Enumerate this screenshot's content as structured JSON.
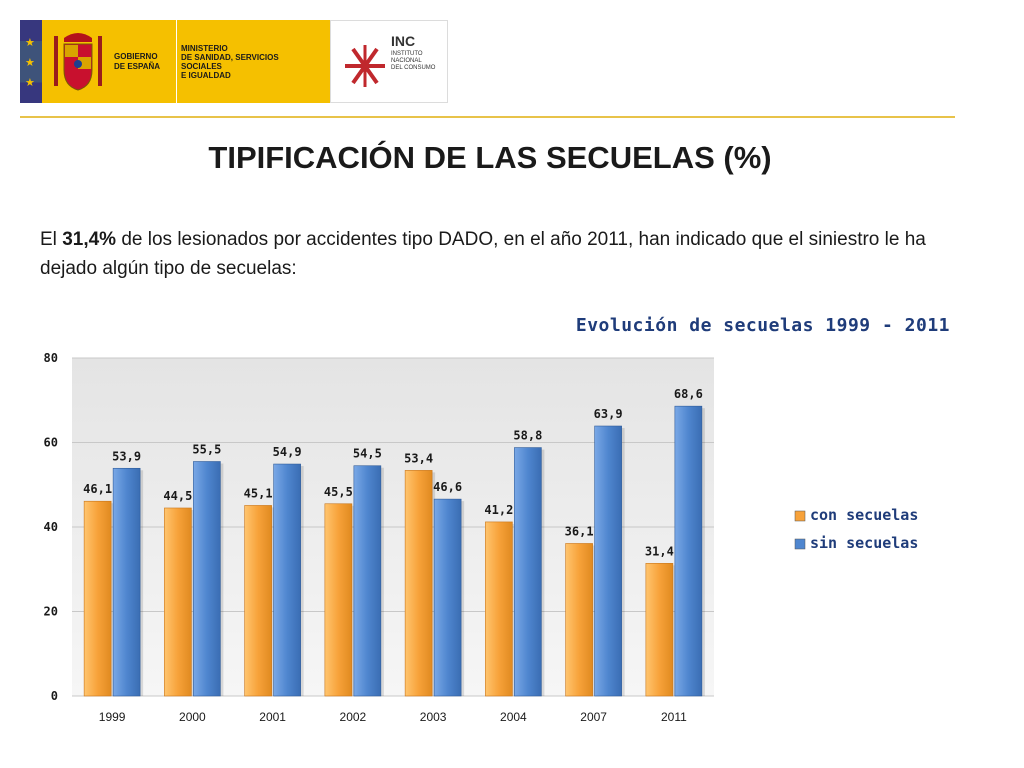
{
  "header": {
    "gobierno": [
      "GOBIERNO",
      "DE ESPAÑA"
    ],
    "ministerio": [
      "MINISTERIO",
      "DE SANIDAD, SERVICIOS SOCIALES",
      "E IGUALDAD"
    ],
    "inc_title": "INC",
    "inc_subtitle": [
      "INSTITUTO",
      "NACIONAL",
      "DEL CONSUMO"
    ],
    "brand_yellow": "#f5c000",
    "brand_red": "#c60b1e"
  },
  "title": "TIPIFICACIÓN DE LAS SECUELAS (%)",
  "intro": {
    "prefix": "El ",
    "highlight": "31,4%",
    "suffix": " de los lesionados por accidentes tipo DADO, en el año 2011, han indicado que el siniestro le ha dejado algún tipo de secuelas:"
  },
  "chart_data": {
    "type": "bar",
    "title": "Evolución de secuelas 1999 - 2011",
    "categories": [
      "1999",
      "2000",
      "2001",
      "2002",
      "2003",
      "2004",
      "2007",
      "2011"
    ],
    "series": [
      {
        "name": "con secuelas",
        "color": "#f7a23a",
        "values": [
          46.1,
          44.5,
          45.1,
          45.5,
          53.4,
          41.2,
          36.1,
          31.4
        ],
        "labels": [
          "46,1",
          "44,5",
          "45,1",
          "45,5",
          "53,4",
          "41,2",
          "36,1",
          "31,4"
        ]
      },
      {
        "name": "sin secuelas",
        "color": "#4f86cf",
        "values": [
          53.9,
          55.5,
          54.9,
          54.5,
          46.6,
          58.8,
          63.9,
          68.6
        ],
        "labels": [
          "53,9",
          "55,5",
          "54,9",
          "54,5",
          "46,6",
          "58,8",
          "63,9",
          "68,6"
        ]
      }
    ],
    "ylim": [
      0,
      80
    ],
    "yticks": [
      "0",
      "20",
      "40",
      "60",
      "80"
    ],
    "grid": true,
    "legend": "right"
  }
}
